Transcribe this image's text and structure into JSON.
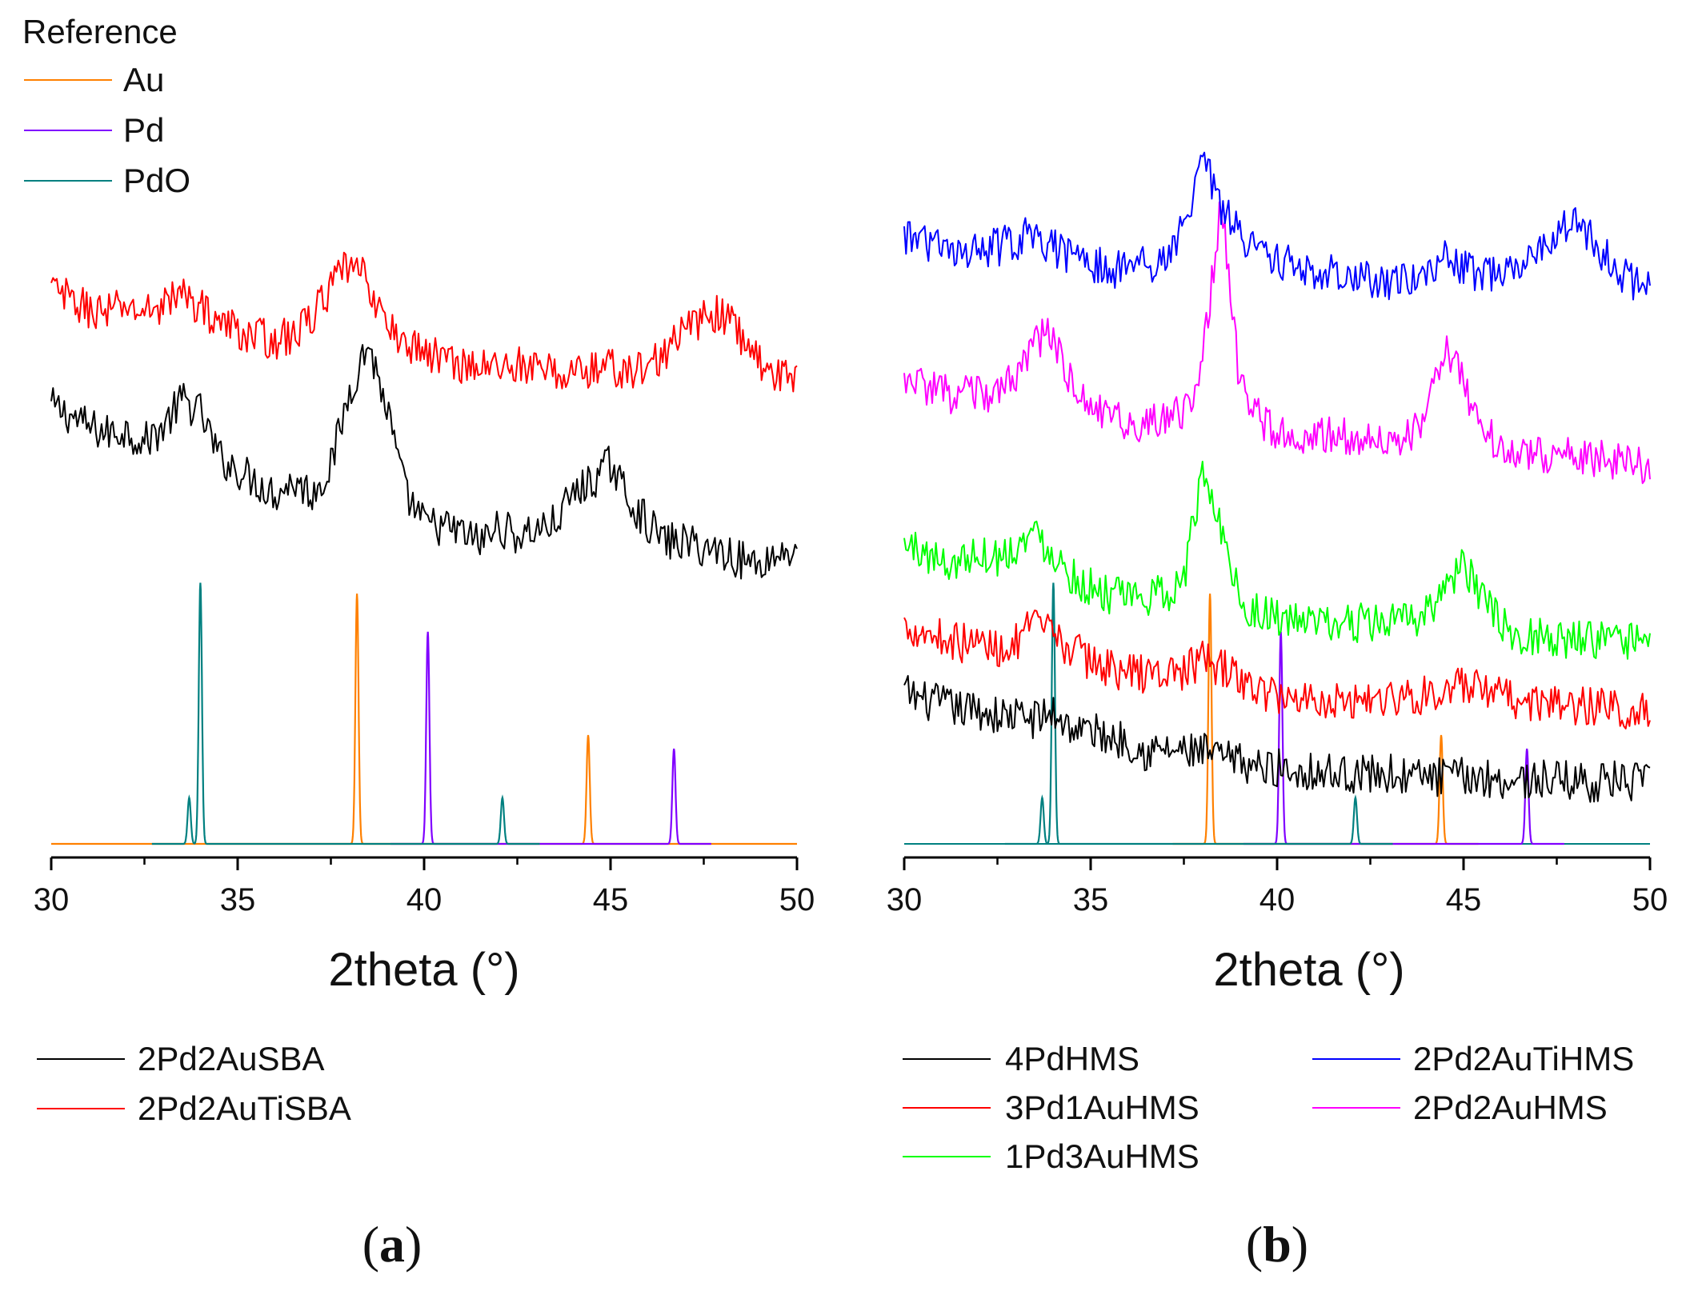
{
  "chart_data": [
    {
      "panel": "a",
      "panel_label_open": "(",
      "panel_label_letter": "a",
      "panel_label_close": ")",
      "type": "line",
      "xlabel": "2theta (°)",
      "ylabel": "",
      "xlim": [
        30,
        50
      ],
      "xticks": [
        30,
        35,
        40,
        45,
        50
      ],
      "grid": false,
      "reference": {
        "title": "Reference",
        "series": [
          {
            "name": "Au",
            "color": "#ff8000",
            "peaks": [
              {
                "x": 38.2,
                "h": 0.92
              },
              {
                "x": 44.4,
                "h": 0.4
              }
            ]
          },
          {
            "name": "Pd",
            "color": "#8000ff",
            "peaks": [
              {
                "x": 40.1,
                "h": 0.78
              },
              {
                "x": 46.7,
                "h": 0.35
              }
            ]
          },
          {
            "name": "PdO",
            "color": "#008080",
            "peaks": [
              {
                "x": 33.7,
                "h": 0.17
              },
              {
                "x": 34.0,
                "h": 0.96
              },
              {
                "x": 42.1,
                "h": 0.17
              }
            ]
          }
        ]
      },
      "series": [
        {
          "name": "2Pd2AuSBA",
          "color": "#000000",
          "x": [
            30,
            30.5,
            31,
            31.5,
            32,
            32.5,
            33,
            33.5,
            34,
            34.5,
            35,
            35.5,
            36,
            36.5,
            37,
            37.5,
            38,
            38.5,
            39,
            39.5,
            40,
            40.5,
            41,
            41.5,
            42,
            42.5,
            43,
            43.5,
            44,
            44.5,
            45,
            45.5,
            46,
            46.5,
            47,
            47.5,
            48,
            48.5,
            49,
            49.5,
            50
          ],
          "y": [
            1.45,
            1.42,
            1.38,
            1.36,
            1.37,
            1.33,
            1.38,
            1.47,
            1.43,
            1.28,
            1.24,
            1.2,
            1.16,
            1.2,
            1.16,
            1.25,
            1.5,
            1.66,
            1.44,
            1.16,
            1.06,
            1.05,
            1.03,
            1.0,
            1.05,
            1.02,
            1.04,
            1.06,
            1.16,
            1.2,
            1.26,
            1.14,
            1.06,
            1.0,
            1.0,
            0.98,
            0.97,
            0.94,
            0.93,
            0.96,
            0.98
          ]
        },
        {
          "name": "2Pd2AuTiSBA",
          "color": "#ff0000",
          "x": [
            30,
            30.5,
            31,
            31.5,
            32,
            32.5,
            33,
            33.5,
            34,
            34.5,
            35,
            35.5,
            36,
            36.5,
            37,
            37.5,
            38,
            38.5,
            39,
            39.5,
            40,
            40.5,
            41,
            41.5,
            42,
            42.5,
            43,
            43.5,
            44,
            44.5,
            45,
            45.5,
            46,
            46.5,
            47,
            47.5,
            48,
            48.5,
            49,
            49.5,
            50
          ],
          "y": [
            1.84,
            1.8,
            1.77,
            1.76,
            1.78,
            1.76,
            1.79,
            1.82,
            1.78,
            1.73,
            1.7,
            1.68,
            1.67,
            1.68,
            1.75,
            1.84,
            1.92,
            1.86,
            1.71,
            1.66,
            1.63,
            1.61,
            1.59,
            1.58,
            1.58,
            1.59,
            1.57,
            1.56,
            1.56,
            1.57,
            1.58,
            1.56,
            1.58,
            1.63,
            1.7,
            1.74,
            1.76,
            1.68,
            1.6,
            1.55,
            1.53
          ]
        }
      ]
    },
    {
      "panel": "b",
      "panel_label_open": "(",
      "panel_label_letter": "b",
      "panel_label_close": ")",
      "type": "line",
      "xlabel": "2theta (°)",
      "ylabel": "",
      "xlim": [
        30,
        50
      ],
      "xticks": [
        30,
        35,
        40,
        45,
        50
      ],
      "grid": false,
      "reference": {
        "series": [
          {
            "name": "Au",
            "color": "#ff8000",
            "peaks": [
              {
                "x": 38.2,
                "h": 0.92
              },
              {
                "x": 44.4,
                "h": 0.4
              }
            ]
          },
          {
            "name": "Pd",
            "color": "#8000ff",
            "peaks": [
              {
                "x": 40.1,
                "h": 0.78
              },
              {
                "x": 46.7,
                "h": 0.35
              }
            ]
          },
          {
            "name": "PdO",
            "color": "#008080",
            "peaks": [
              {
                "x": 33.7,
                "h": 0.17
              },
              {
                "x": 34.0,
                "h": 0.96
              },
              {
                "x": 42.1,
                "h": 0.17
              }
            ]
          }
        ]
      },
      "series": [
        {
          "name": "4PdHMS",
          "color": "#000000",
          "x": [
            30,
            30.5,
            31,
            31.5,
            32,
            32.5,
            33,
            33.5,
            34,
            34.5,
            35,
            35.5,
            36,
            36.5,
            37,
            37.5,
            38,
            38.5,
            39,
            39.5,
            40,
            40.5,
            41,
            41.5,
            42,
            42.5,
            43,
            43.5,
            44,
            44.5,
            45,
            45.5,
            46,
            46.5,
            47,
            47.5,
            48,
            48.5,
            49,
            49.5,
            50
          ],
          "y": [
            0.5,
            0.47,
            0.46,
            0.44,
            0.44,
            0.42,
            0.42,
            0.41,
            0.43,
            0.38,
            0.37,
            0.35,
            0.34,
            0.3,
            0.31,
            0.3,
            0.3,
            0.28,
            0.27,
            0.25,
            0.25,
            0.24,
            0.24,
            0.23,
            0.23,
            0.23,
            0.23,
            0.22,
            0.22,
            0.22,
            0.22,
            0.22,
            0.21,
            0.21,
            0.21,
            0.21,
            0.21,
            0.2,
            0.21,
            0.2,
            0.2
          ]
        },
        {
          "name": "3Pd1AuHMS",
          "color": "#ff0000",
          "x": [
            30,
            30.5,
            31,
            31.5,
            32,
            32.5,
            33,
            33.5,
            34,
            34.5,
            35,
            35.5,
            36,
            36.5,
            37,
            37.5,
            38,
            38.5,
            39,
            39.5,
            40,
            40.5,
            41,
            41.5,
            42,
            42.5,
            43,
            43.5,
            44,
            44.5,
            45,
            45.5,
            46,
            46.5,
            47,
            47.5,
            48,
            48.5,
            49,
            49.5,
            50
          ],
          "y": [
            0.72,
            0.7,
            0.68,
            0.66,
            0.66,
            0.64,
            0.66,
            0.72,
            0.68,
            0.64,
            0.6,
            0.58,
            0.56,
            0.56,
            0.56,
            0.57,
            0.6,
            0.58,
            0.54,
            0.5,
            0.49,
            0.48,
            0.48,
            0.47,
            0.47,
            0.48,
            0.48,
            0.48,
            0.49,
            0.5,
            0.52,
            0.5,
            0.48,
            0.47,
            0.46,
            0.46,
            0.45,
            0.45,
            0.45,
            0.44,
            0.43
          ]
        },
        {
          "name": "1Pd3AuHMS",
          "color": "#00ff00",
          "x": [
            30,
            30.5,
            31,
            31.5,
            32,
            32.5,
            33,
            33.5,
            34,
            34.5,
            35,
            35.5,
            36,
            36.5,
            37,
            37.5,
            38,
            38.5,
            39,
            39.5,
            40,
            40.5,
            41,
            41.5,
            42,
            42.5,
            43,
            43.5,
            44,
            44.5,
            45,
            45.5,
            46,
            46.5,
            47,
            47.5,
            48,
            48.5,
            49,
            49.5,
            50
          ],
          "y": [
            0.98,
            0.96,
            0.92,
            0.93,
            0.96,
            0.94,
            0.98,
            1.02,
            0.96,
            0.88,
            0.84,
            0.82,
            0.8,
            0.81,
            0.82,
            0.87,
            1.22,
            1.05,
            0.8,
            0.76,
            0.74,
            0.73,
            0.72,
            0.72,
            0.72,
            0.73,
            0.72,
            0.73,
            0.76,
            0.84,
            0.92,
            0.8,
            0.72,
            0.69,
            0.68,
            0.68,
            0.67,
            0.67,
            0.66,
            0.66,
            0.66
          ]
        },
        {
          "name": "2Pd2AuHMS",
          "color": "#ff00ff",
          "x": [
            30,
            30.5,
            31,
            31.5,
            32,
            32.5,
            33,
            33.5,
            34,
            34.5,
            35,
            35.5,
            36,
            36.5,
            37,
            37.5,
            38,
            38.5,
            39,
            39.5,
            40,
            40.5,
            41,
            41.5,
            42,
            42.5,
            43,
            43.5,
            44,
            44.5,
            45,
            45.5,
            46,
            46.5,
            47,
            47.5,
            48,
            48.5,
            49,
            49.5,
            50
          ],
          "y": [
            1.52,
            1.5,
            1.48,
            1.47,
            1.48,
            1.46,
            1.54,
            1.66,
            1.66,
            1.5,
            1.44,
            1.4,
            1.37,
            1.38,
            1.38,
            1.42,
            1.58,
            2.12,
            1.5,
            1.4,
            1.36,
            1.34,
            1.33,
            1.35,
            1.34,
            1.33,
            1.33,
            1.34,
            1.4,
            1.64,
            1.52,
            1.36,
            1.3,
            1.28,
            1.29,
            1.27,
            1.27,
            1.26,
            1.26,
            1.25,
            1.24
          ]
        },
        {
          "name": "2Pd2AuTiHMS",
          "color": "#0000ff",
          "x": [
            30,
            30.5,
            31,
            31.5,
            32,
            32.5,
            33,
            33.5,
            34,
            34.5,
            35,
            35.5,
            36,
            36.5,
            37,
            37.5,
            38,
            38.5,
            39,
            39.5,
            40,
            40.5,
            41,
            41.5,
            42,
            42.5,
            43,
            43.5,
            44,
            44.5,
            45,
            45.5,
            46,
            46.5,
            47,
            47.5,
            48,
            48.5,
            49,
            49.5,
            50
          ],
          "y": [
            2.0,
            1.98,
            1.95,
            1.93,
            1.94,
            1.96,
            1.98,
            2.0,
            1.96,
            1.92,
            1.9,
            1.89,
            1.88,
            1.9,
            1.92,
            2.02,
            2.28,
            2.08,
            2.0,
            1.95,
            1.92,
            1.9,
            1.88,
            1.87,
            1.86,
            1.85,
            1.84,
            1.84,
            1.86,
            1.92,
            1.89,
            1.86,
            1.87,
            1.9,
            1.96,
            2.02,
            2.06,
            1.98,
            1.9,
            1.85,
            1.82
          ]
        }
      ]
    }
  ]
}
